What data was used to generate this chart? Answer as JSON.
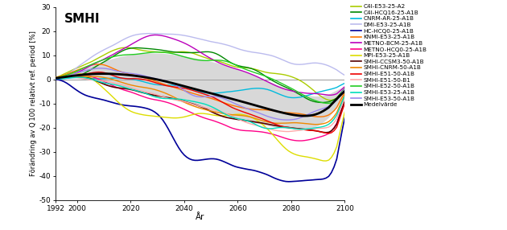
{
  "title": "SMHI",
  "ylabel": "Förändring av Q 100 relativt ref. period [%]",
  "xlabel": "År",
  "xlim": [
    1992,
    2100
  ],
  "ylim": [
    -50,
    30
  ],
  "yticks": [
    -50,
    -40,
    -30,
    -20,
    -10,
    0,
    10,
    20,
    30
  ],
  "xticks": [
    1992,
    2000,
    2020,
    2040,
    2060,
    2080,
    2100
  ],
  "xticklabels": [
    "1992",
    "2000",
    "2020",
    "2040",
    "2060",
    "2080",
    "2100"
  ],
  "scenarios": [
    {
      "name": "C4I-E53-25-A2",
      "color": "#aacc00",
      "lw": 1.0
    },
    {
      "name": "C4I-HCQ16-25-A1B",
      "color": "#008800",
      "lw": 1.0
    },
    {
      "name": "CNRM-AR-25-A1B",
      "color": "#00bbdd",
      "lw": 1.0
    },
    {
      "name": "DMI-E53-25-A1B",
      "color": "#bbbbee",
      "lw": 1.0
    },
    {
      "name": "HC-HCQ0-25-A1B",
      "color": "#000099",
      "lw": 1.2
    },
    {
      "name": "KNMI-E53-25-A1B",
      "color": "#ff7700",
      "lw": 1.0
    },
    {
      "name": "METNO-BCM-25-A1B",
      "color": "#bb00bb",
      "lw": 1.0
    },
    {
      "name": "METNO-HCQ0-25-A1B",
      "color": "#ff0088",
      "lw": 1.0
    },
    {
      "name": "MPI-E53-25-A1B",
      "color": "#dddd00",
      "lw": 1.0
    },
    {
      "name": "SMHI-CCSM3-50-A1B",
      "color": "#550000",
      "lw": 1.2
    },
    {
      "name": "SMHI-CNRM-50-A1B",
      "color": "#ee8800",
      "lw": 1.0
    },
    {
      "name": "SMHI-E51-50-A1B",
      "color": "#ee0000",
      "lw": 1.0
    },
    {
      "name": "SMHI-E51-50-B1",
      "color": "#ffaaaa",
      "lw": 1.0
    },
    {
      "name": "SMHI-E52-50-A1B",
      "color": "#22cc22",
      "lw": 1.0
    },
    {
      "name": "SMHI-E53-25-A1B",
      "color": "#00ddbb",
      "lw": 1.0
    },
    {
      "name": "SMHI-E53-50-A1B",
      "color": "#9988ee",
      "lw": 1.0
    },
    {
      "name": "Medelvärde",
      "color": "#000000",
      "lw": 2.0
    }
  ],
  "background_color": "#ffffff",
  "shade_color": "#aaaaaa",
  "shade_alpha": 0.45,
  "figsize": [
    6.3,
    2.86
  ],
  "dpi": 100
}
